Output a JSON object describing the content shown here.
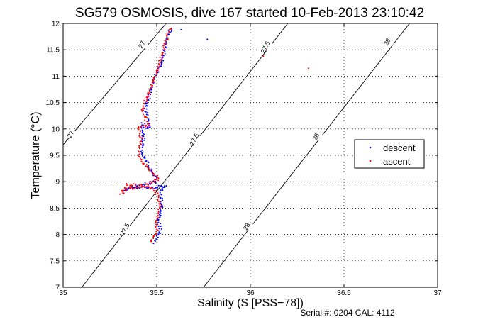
{
  "chart_data": {
    "type": "scatter",
    "title": "SG579 OSMOSIS, dive 167 started 10-Feb-2013 23:10:42",
    "xlabel": "Salinity (S [PSS−78])",
    "ylabel": "Temperature (°C)",
    "xlim": [
      35,
      37
    ],
    "ylim": [
      7,
      12
    ],
    "xticks": [
      35,
      35.5,
      36,
      36.5,
      37
    ],
    "xtick_labels": [
      "35",
      "35.5",
      "36",
      "36.5",
      "37"
    ],
    "yticks": [
      7,
      7.5,
      8,
      8.5,
      9,
      9.5,
      10,
      10.5,
      11,
      11.5,
      12
    ],
    "ytick_labels": [
      "7",
      "7.5",
      "8",
      "8.5",
      "9",
      "9.5",
      "10",
      "10.5",
      "11",
      "11.5",
      "12"
    ],
    "grid": true,
    "legend_position": "right",
    "footer": "Serial #: 0204  CAL: 4112",
    "series": [
      {
        "name": "descent",
        "color": "#0000ff",
        "path": [
          [
            35.49,
            7.85
          ],
          [
            35.52,
            8.05
          ],
          [
            35.51,
            8.3
          ],
          [
            35.53,
            8.55
          ],
          [
            35.52,
            8.8
          ],
          [
            35.55,
            8.92
          ],
          [
            35.45,
            8.88
          ],
          [
            35.38,
            8.9
          ],
          [
            35.33,
            8.85
          ],
          [
            35.42,
            8.95
          ],
          [
            35.5,
            9.0
          ],
          [
            35.46,
            9.3
          ],
          [
            35.42,
            9.55
          ],
          [
            35.43,
            9.85
          ],
          [
            35.42,
            10.1
          ],
          [
            35.46,
            10.0
          ],
          [
            35.44,
            10.4
          ],
          [
            35.47,
            10.75
          ],
          [
            35.5,
            11.05
          ],
          [
            35.53,
            11.3
          ],
          [
            35.55,
            11.6
          ],
          [
            35.57,
            11.85
          ],
          [
            35.59,
            11.9
          ]
        ],
        "outliers": [
          [
            35.63,
            11.88
          ],
          [
            35.77,
            11.7
          ]
        ]
      },
      {
        "name": "ascent",
        "color": "#ff0000",
        "path": [
          [
            35.47,
            7.85
          ],
          [
            35.5,
            8.05
          ],
          [
            35.5,
            8.3
          ],
          [
            35.52,
            8.55
          ],
          [
            35.5,
            8.8
          ],
          [
            35.47,
            8.9
          ],
          [
            35.36,
            8.88
          ],
          [
            35.31,
            8.78
          ],
          [
            35.34,
            8.95
          ],
          [
            35.43,
            8.92
          ],
          [
            35.51,
            9.05
          ],
          [
            35.44,
            9.3
          ],
          [
            35.4,
            9.5
          ],
          [
            35.42,
            9.8
          ],
          [
            35.4,
            10.05
          ],
          [
            35.46,
            10.05
          ],
          [
            35.42,
            10.35
          ],
          [
            35.46,
            10.7
          ],
          [
            35.49,
            11.0
          ],
          [
            35.52,
            11.3
          ],
          [
            35.54,
            11.55
          ],
          [
            35.56,
            11.8
          ],
          [
            35.58,
            11.93
          ]
        ],
        "outliers": [
          [
            36.07,
            11.38
          ],
          [
            36.31,
            11.15
          ]
        ]
      }
    ],
    "density_contours": [
      {
        "label": "27",
        "points": [
          [
            35.0,
            9.7
          ],
          [
            35.55,
            12.0
          ]
        ]
      },
      {
        "label": "27.5",
        "points": [
          [
            35.1,
            7.0
          ],
          [
            36.2,
            12.0
          ]
        ]
      },
      {
        "label": "28",
        "points": [
          [
            35.75,
            7.0
          ],
          [
            36.85,
            12.0
          ]
        ]
      }
    ],
    "contour_labels": [
      {
        "text": "27",
        "at": [
          35.42,
          11.6
        ]
      },
      {
        "text": "27",
        "at": [
          35.04,
          9.9
        ]
      },
      {
        "text": "27.5",
        "at": [
          36.08,
          11.55
        ]
      },
      {
        "text": "27.5",
        "at": [
          35.7,
          9.8
        ]
      },
      {
        "text": "27.5",
        "at": [
          35.33,
          8.1
        ]
      },
      {
        "text": "28",
        "at": [
          36.73,
          11.65
        ]
      },
      {
        "text": "28",
        "at": [
          36.35,
          9.85
        ]
      },
      {
        "text": "28",
        "at": [
          35.98,
          8.15
        ]
      }
    ]
  }
}
